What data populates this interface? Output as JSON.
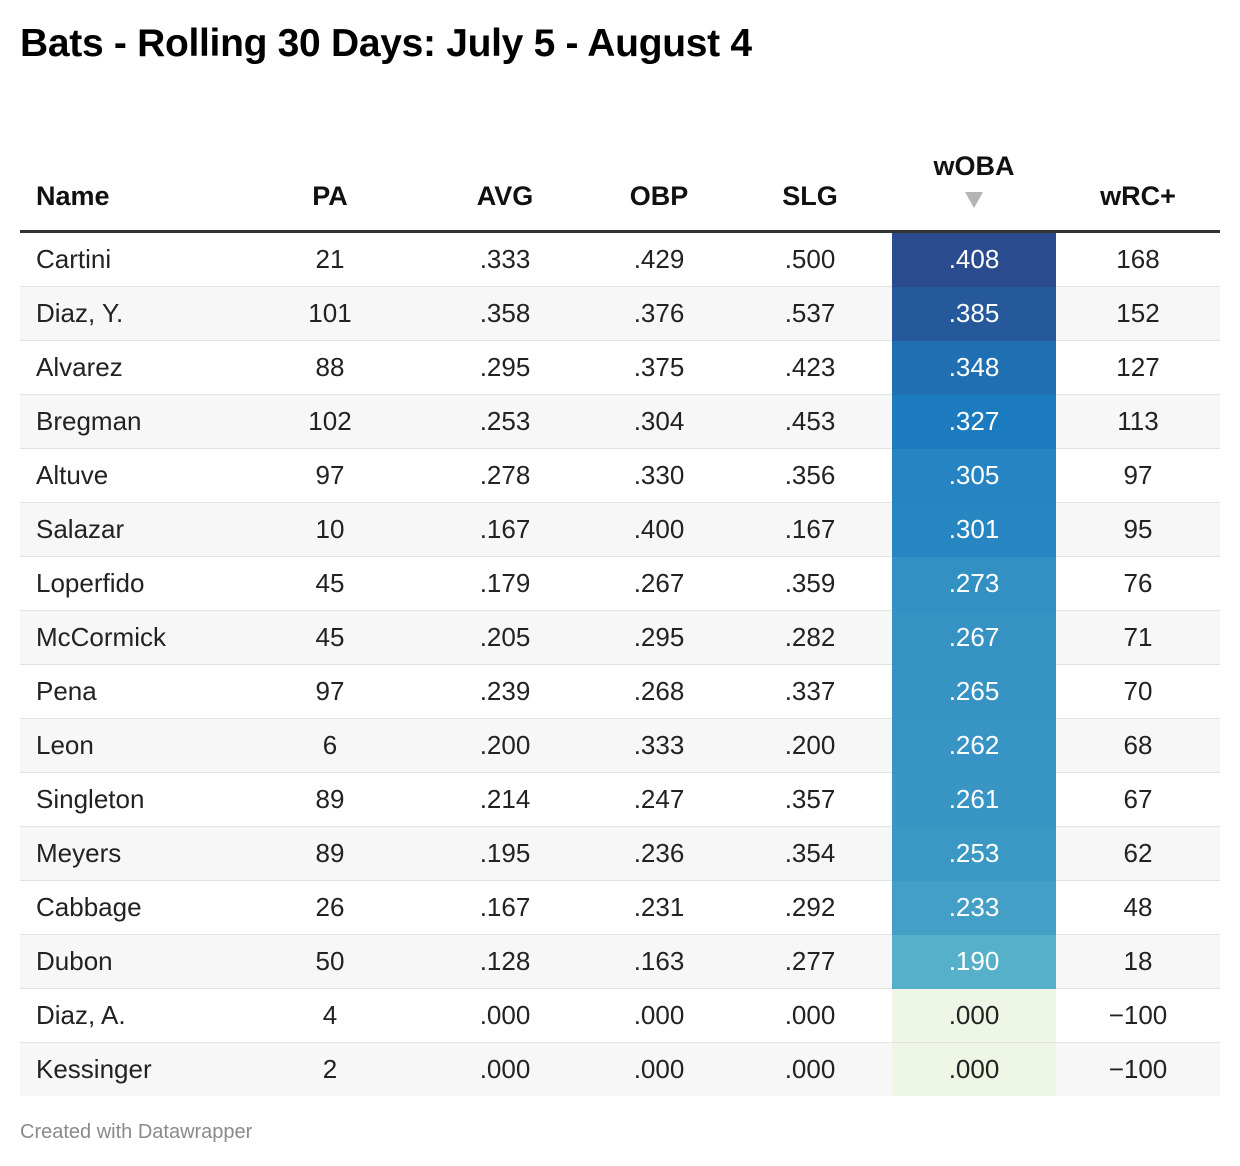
{
  "title": "Bats - Rolling 30 Days: July 5 - August 4",
  "footer": "Created with Datawrapper",
  "chart_data": {
    "type": "table",
    "title": "Bats - Rolling 30 Days: July 5 - August 4",
    "sorted_by": "wOBA",
    "sort_direction": "descending",
    "heatmap_column": "wOBA",
    "heatmap_colors": {
      "high": "#2a4b8d",
      "mid": "#1c7bbf",
      "low": "#56b0c9",
      "zero": "#eef6e6",
      "text_dark": "#222222",
      "text_light": "#ffffff"
    },
    "columns": [
      "Name",
      "PA",
      "AVG",
      "OBP",
      "SLG",
      "wOBA",
      "wRC+"
    ],
    "rows": [
      [
        "Cartini",
        "21",
        ".333",
        ".429",
        ".500",
        ".408",
        "168"
      ],
      [
        "Diaz, Y.",
        "101",
        ".358",
        ".376",
        ".537",
        ".385",
        "152"
      ],
      [
        "Alvarez",
        "88",
        ".295",
        ".375",
        ".423",
        ".348",
        "127"
      ],
      [
        "Bregman",
        "102",
        ".253",
        ".304",
        ".453",
        ".327",
        "113"
      ],
      [
        "Altuve",
        "97",
        ".278",
        ".330",
        ".356",
        ".305",
        "97"
      ],
      [
        "Salazar",
        "10",
        ".167",
        ".400",
        ".167",
        ".301",
        "95"
      ],
      [
        "Loperfido",
        "45",
        ".179",
        ".267",
        ".359",
        ".273",
        "76"
      ],
      [
        "McCormick",
        "45",
        ".205",
        ".295",
        ".282",
        ".267",
        "71"
      ],
      [
        "Pena",
        "97",
        ".239",
        ".268",
        ".337",
        ".265",
        "70"
      ],
      [
        "Leon",
        "6",
        ".200",
        ".333",
        ".200",
        ".262",
        "68"
      ],
      [
        "Singleton",
        "89",
        ".214",
        ".247",
        ".357",
        ".261",
        "67"
      ],
      [
        "Meyers",
        "89",
        ".195",
        ".236",
        ".354",
        ".253",
        "62"
      ],
      [
        "Cabbage",
        "26",
        ".167",
        ".231",
        ".292",
        ".233",
        "48"
      ],
      [
        "Dubon",
        "50",
        ".128",
        ".163",
        ".277",
        ".190",
        "18"
      ],
      [
        "Diaz, A.",
        "4",
        ".000",
        ".000",
        ".000",
        ".000",
        "−100"
      ],
      [
        "Kessinger",
        "2",
        ".000",
        ".000",
        ".000",
        ".000",
        "−100"
      ]
    ]
  }
}
